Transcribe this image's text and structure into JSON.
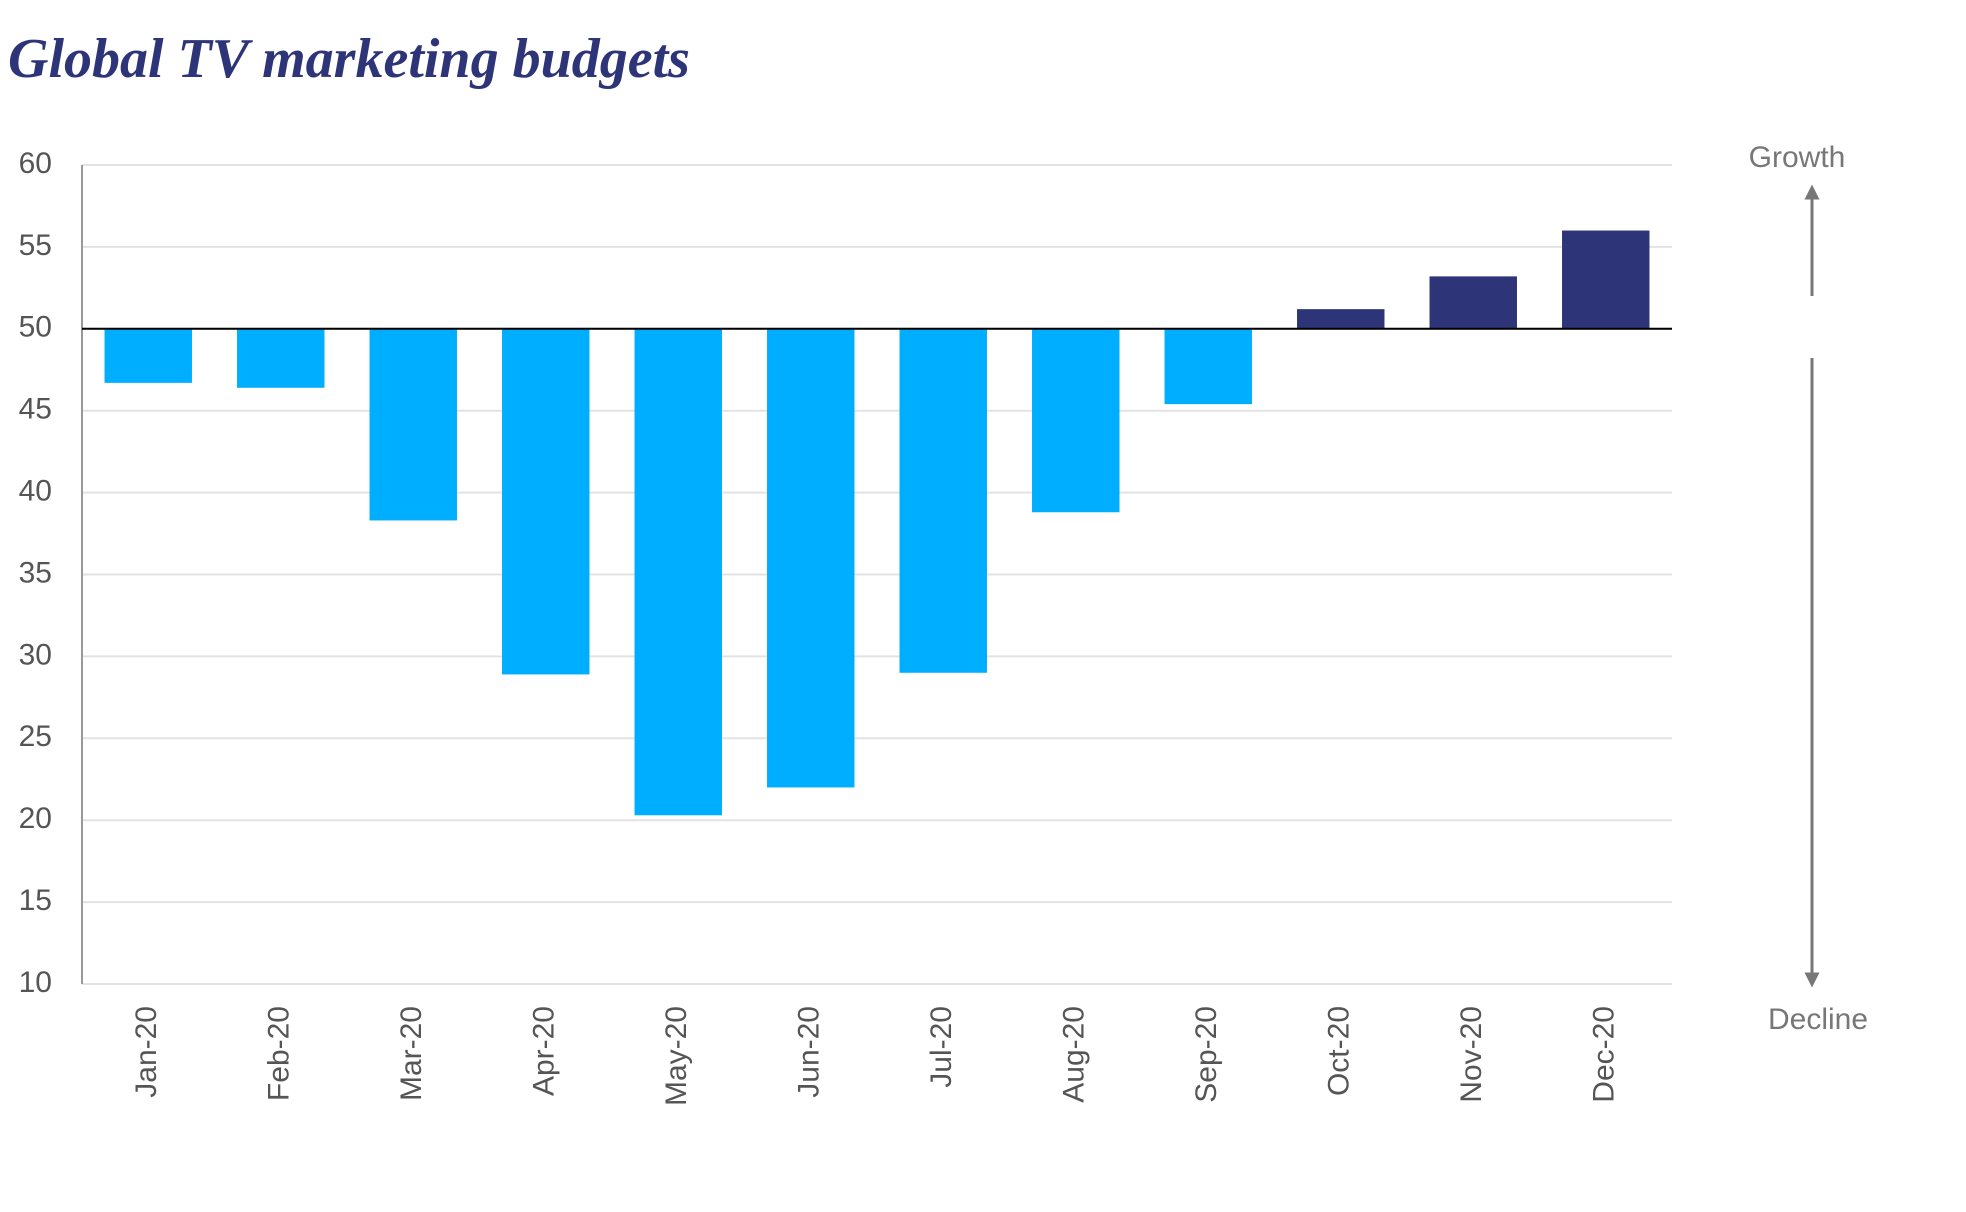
{
  "chart_data": {
    "type": "bar",
    "title": "Global TV marketing budgets",
    "categories": [
      "Jan-20",
      "Feb-20",
      "Mar-20",
      "Apr-20",
      "May-20",
      "Jun-20",
      "Jul-20",
      "Aug-20",
      "Sep-20",
      "Oct-20",
      "Nov-20",
      "Dec-20"
    ],
    "values": [
      46.7,
      46.4,
      38.3,
      28.9,
      20.3,
      22.0,
      29.0,
      38.8,
      45.4,
      51.2,
      53.2,
      56.0
    ],
    "colors": [
      "#00aeff",
      "#00aeff",
      "#00aeff",
      "#00aeff",
      "#00aeff",
      "#00aeff",
      "#00aeff",
      "#00aeff",
      "#00aeff",
      "#2e3478",
      "#2e3478",
      "#2e3478"
    ],
    "baseline": 50,
    "ylim": [
      10,
      60
    ],
    "yticks": [
      10,
      15,
      20,
      25,
      30,
      35,
      40,
      45,
      50,
      55,
      60
    ],
    "grid": true,
    "annotations": [
      "Growth",
      "Decline"
    ]
  }
}
